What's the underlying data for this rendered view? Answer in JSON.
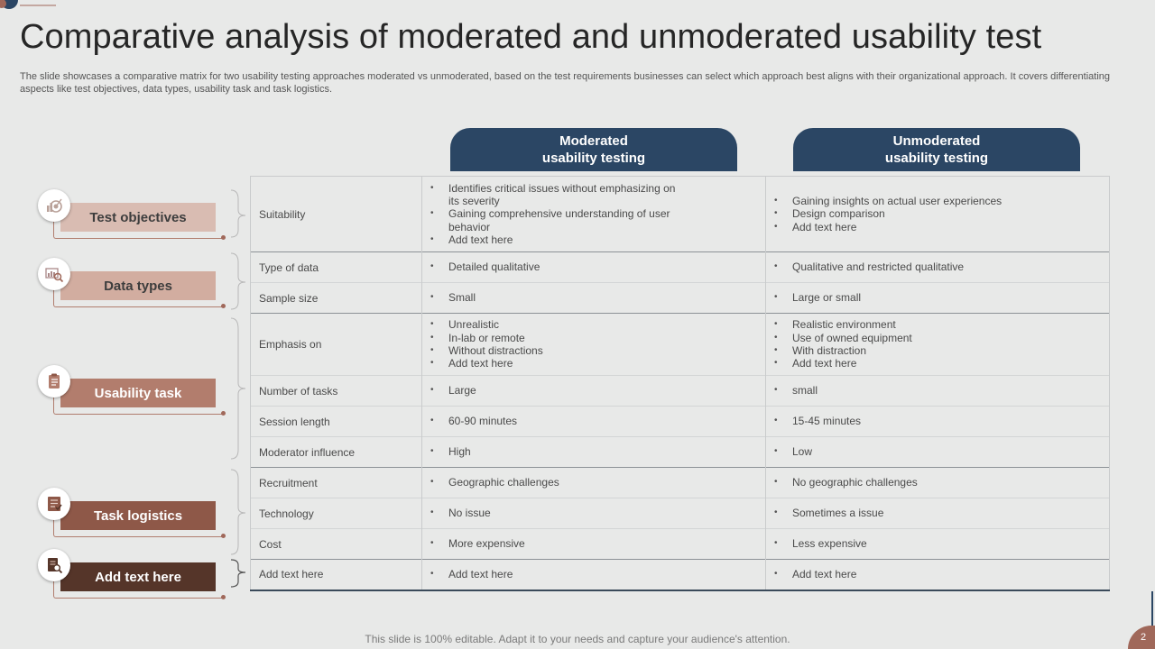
{
  "title": "Comparative analysis of moderated and unmoderated usability test",
  "subtitle": "The slide showcases a comparative matrix for two usability testing approaches moderated vs unmoderated, based on the test requirements businesses can select which approach best aligns with their organizational approach. It covers differentiating aspects like test objectives, data types, usability task and task logistics.",
  "columns": {
    "moderated": [
      "Moderated",
      "usability testing"
    ],
    "unmoderated": [
      "Unmoderated",
      "usability testing"
    ]
  },
  "categories": [
    {
      "label": "Test objectives",
      "icon": "target-icon",
      "pill_color": "#d9bcb2",
      "text_color": "#3d3d3d"
    },
    {
      "label": "Data types",
      "icon": "data-analysis-icon",
      "pill_color": "#d2ada0",
      "text_color": "#3d3d3d"
    },
    {
      "label": "Usability task",
      "icon": "clipboard-icon",
      "pill_color": "#b27d6d",
      "text_color": "#ffffff"
    },
    {
      "label": "Task logistics",
      "icon": "checklist-icon",
      "pill_color": "#8e5848",
      "text_color": "#ffffff"
    },
    {
      "label": "Add  text here",
      "icon": "document-search-icon",
      "pill_color": "#553529",
      "text_color": "#ffffff"
    }
  ],
  "rows": [
    {
      "aspect": "Suitability",
      "moderated": [
        "Identifies critical issues without emphasizing on its severity",
        "Gaining comprehensive understanding of user behavior",
        "Add text here"
      ],
      "unmoderated": [
        "Gaining insights on actual user experiences",
        "Design comparison",
        "Add text here"
      ]
    },
    {
      "aspect": "Type of data",
      "moderated": [
        "Detailed qualitative"
      ],
      "unmoderated": [
        "Qualitative and restricted qualitative"
      ]
    },
    {
      "aspect": "Sample size",
      "moderated": [
        "Small"
      ],
      "unmoderated": [
        "Large or small"
      ]
    },
    {
      "aspect": "Emphasis on",
      "moderated": [
        "Unrealistic",
        "In-lab or remote",
        "Without distractions",
        "Add text here"
      ],
      "unmoderated": [
        "Realistic environment",
        "Use of owned equipment",
        "With distraction",
        "Add text here"
      ]
    },
    {
      "aspect": "Number of tasks",
      "moderated": [
        "Large"
      ],
      "unmoderated": [
        "small"
      ]
    },
    {
      "aspect": "Session length",
      "moderated": [
        "60-90 minutes"
      ],
      "unmoderated": [
        "15-45 minutes"
      ]
    },
    {
      "aspect": "Moderator influence",
      "moderated": [
        "High"
      ],
      "unmoderated": [
        "Low"
      ]
    },
    {
      "aspect": "Recruitment",
      "moderated": [
        "Geographic challenges"
      ],
      "unmoderated": [
        "No geographic challenges"
      ]
    },
    {
      "aspect": "Technology",
      "moderated": [
        "No issue"
      ],
      "unmoderated": [
        "Sometimes a issue"
      ]
    },
    {
      "aspect": "Cost",
      "moderated": [
        "More expensive"
      ],
      "unmoderated": [
        "Less expensive"
      ]
    },
    {
      "aspect": "Add text here",
      "moderated": [
        "Add text here"
      ],
      "unmoderated": [
        "Add text here"
      ]
    }
  ],
  "footer": "This slide is 100% editable. Adapt it to your needs and capture your audience's attention.",
  "page_number": "2",
  "colors": {
    "header": "#2b4664",
    "accent": "#a0685a",
    "background": "#e8e9e8"
  }
}
